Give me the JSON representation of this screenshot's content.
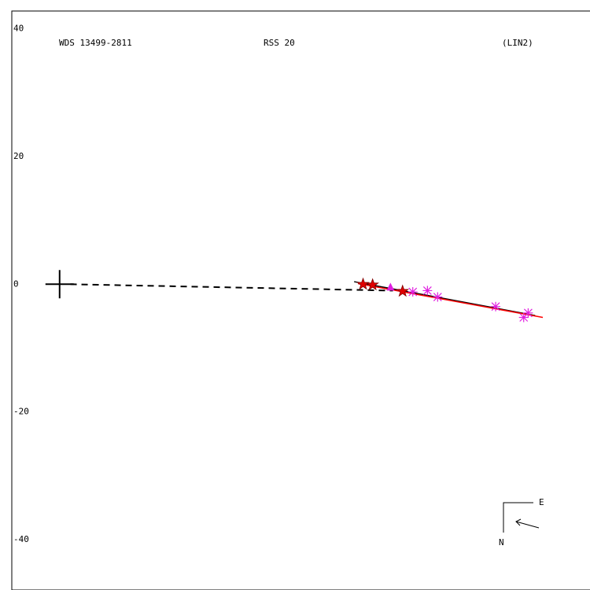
{
  "chart_data": {
    "type": "scatter",
    "title": "WDS 13499-2811",
    "annotations": [
      "RSS  20",
      "(LIN2)"
    ],
    "compass": {
      "east": "E",
      "north": "N"
    },
    "xlim": [
      -7.5,
      83.2
    ],
    "ylim": [
      -47.9,
      42.8
    ],
    "yticks": [
      40,
      20,
      0,
      -20,
      -40
    ],
    "grid": false,
    "series": [
      {
        "marker": "star",
        "color": "#e00000",
        "x": [
          47.6,
          49.1,
          53.8
        ],
        "y": [
          0,
          -0.1,
          -1.1
        ]
      },
      {
        "marker": "triangle",
        "color": "#e020e0",
        "x": [
          51.9
        ],
        "y": [
          -0.5
        ]
      },
      {
        "marker": "asterisk",
        "color": "#e020e0",
        "x": [
          55.4,
          57.7,
          59.3,
          68.4,
          72.8,
          73.5
        ],
        "y": [
          -1.2,
          -1.0,
          -2.0,
          -3.5,
          -5.2,
          -4.5
        ]
      }
    ],
    "lines": [
      {
        "style": "dashed",
        "color": "#000000",
        "x": [
          1.7,
          52.3
        ],
        "y": [
          0,
          -1.0
        ]
      },
      {
        "style": "solid",
        "color": "#000000",
        "x": [
          46.2,
          74.6
        ],
        "y": [
          0.4,
          -4.9
        ]
      },
      {
        "style": "solid",
        "color": "#ff0000",
        "x": [
          46.8,
          75.8
        ],
        "y": [
          0.1,
          -5.2
        ]
      }
    ],
    "origin": {
      "x": 0,
      "y": 0
    }
  }
}
